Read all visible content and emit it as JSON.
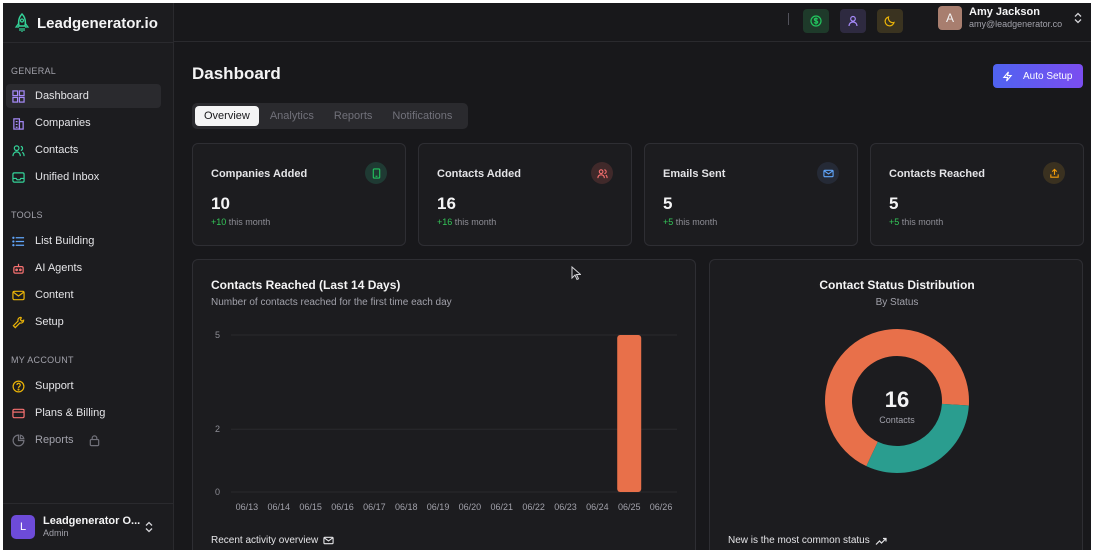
{
  "brand": {
    "name": "Leadgenerator.io"
  },
  "sidebar": {
    "sections": [
      {
        "title": "GENERAL",
        "items": [
          {
            "label": "Dashboard",
            "icon": "grid-icon",
            "active": true
          },
          {
            "label": "Companies",
            "icon": "building-icon"
          },
          {
            "label": "Contacts",
            "icon": "users-icon"
          },
          {
            "label": "Unified Inbox",
            "icon": "inbox-icon"
          }
        ]
      },
      {
        "title": "TOOLS",
        "items": [
          {
            "label": "List Building",
            "icon": "list-icon"
          },
          {
            "label": "AI Agents",
            "icon": "bot-icon"
          },
          {
            "label": "Content",
            "icon": "mail-icon"
          },
          {
            "label": "Setup",
            "icon": "wrench-icon"
          }
        ]
      },
      {
        "title": "MY ACCOUNT",
        "items": [
          {
            "label": "Support",
            "icon": "help-circle-icon"
          },
          {
            "label": "Plans & Billing",
            "icon": "credit-card-icon"
          },
          {
            "label": "Reports",
            "icon": "pie-chart-icon",
            "locked": true
          }
        ]
      }
    ],
    "org": {
      "initial": "L",
      "name": "Leadgenerator O...",
      "role": "Admin"
    }
  },
  "header": {
    "buttons": [
      {
        "icon": "dollar-icon",
        "color": "#22c55e",
        "bg": "#1e3a2a"
      },
      {
        "icon": "user-icon",
        "color": "#a78bfa",
        "bg": "#2e2a40"
      },
      {
        "icon": "moon-icon",
        "color": "#eab308",
        "bg": "#3a3320"
      }
    ],
    "user": {
      "initial": "A",
      "name": "Amy Jackson",
      "email": "amy@leadgenerator.co"
    }
  },
  "main": {
    "title": "Dashboard",
    "auto_setup_label": "Auto Setup",
    "tabs": [
      {
        "label": "Overview",
        "active": true
      },
      {
        "label": "Analytics"
      },
      {
        "label": "Reports"
      },
      {
        "label": "Notifications"
      }
    ],
    "stats": [
      {
        "label": "Companies Added",
        "value": "10",
        "delta": "+10",
        "suffix": " this month",
        "icon": "tablet-icon",
        "icon_color": "#22c55e",
        "icon_bg": "#1f3a33"
      },
      {
        "label": "Contacts Added",
        "value": "16",
        "delta": "+16",
        "suffix": " this month",
        "icon": "users-icon",
        "icon_color": "#f87171",
        "icon_bg": "#40292a"
      },
      {
        "label": "Emails Sent",
        "value": "5",
        "delta": "+5",
        "suffix": " this month",
        "icon": "mail-icon",
        "icon_color": "#60a5fa",
        "icon_bg": "#252a36"
      },
      {
        "label": "Contacts Reached",
        "value": "5",
        "delta": "+5",
        "suffix": " this month",
        "icon": "upload-icon",
        "icon_color": "#f59e0b",
        "icon_bg": "#3a3120"
      }
    ],
    "bar_chart_footer": "Recent activity overview",
    "pie_chart_footer": "New is the most common status"
  },
  "chart_data": [
    {
      "type": "bar",
      "title": "Contacts Reached (Last 14 Days)",
      "subtitle": "Number of contacts reached for the first time each day",
      "categories": [
        "06/13",
        "06/14",
        "06/15",
        "06/16",
        "06/17",
        "06/18",
        "06/19",
        "06/20",
        "06/21",
        "06/22",
        "06/23",
        "06/24",
        "06/25",
        "06/26"
      ],
      "values": [
        0,
        0,
        0,
        0,
        0,
        0,
        0,
        0,
        0,
        0,
        0,
        0,
        5,
        0
      ],
      "yticks": [
        0,
        2,
        5
      ],
      "ylim": [
        0,
        5
      ],
      "color": "#e8704a",
      "grid": true
    },
    {
      "type": "pie",
      "title": "Contact Status Distribution",
      "subtitle": "By Status",
      "center_value": "16",
      "center_label": "Contacts",
      "slices": [
        {
          "fraction": 0.69,
          "color": "#e8704a"
        },
        {
          "fraction": 0.31,
          "color": "#2a9d8f"
        }
      ]
    }
  ]
}
